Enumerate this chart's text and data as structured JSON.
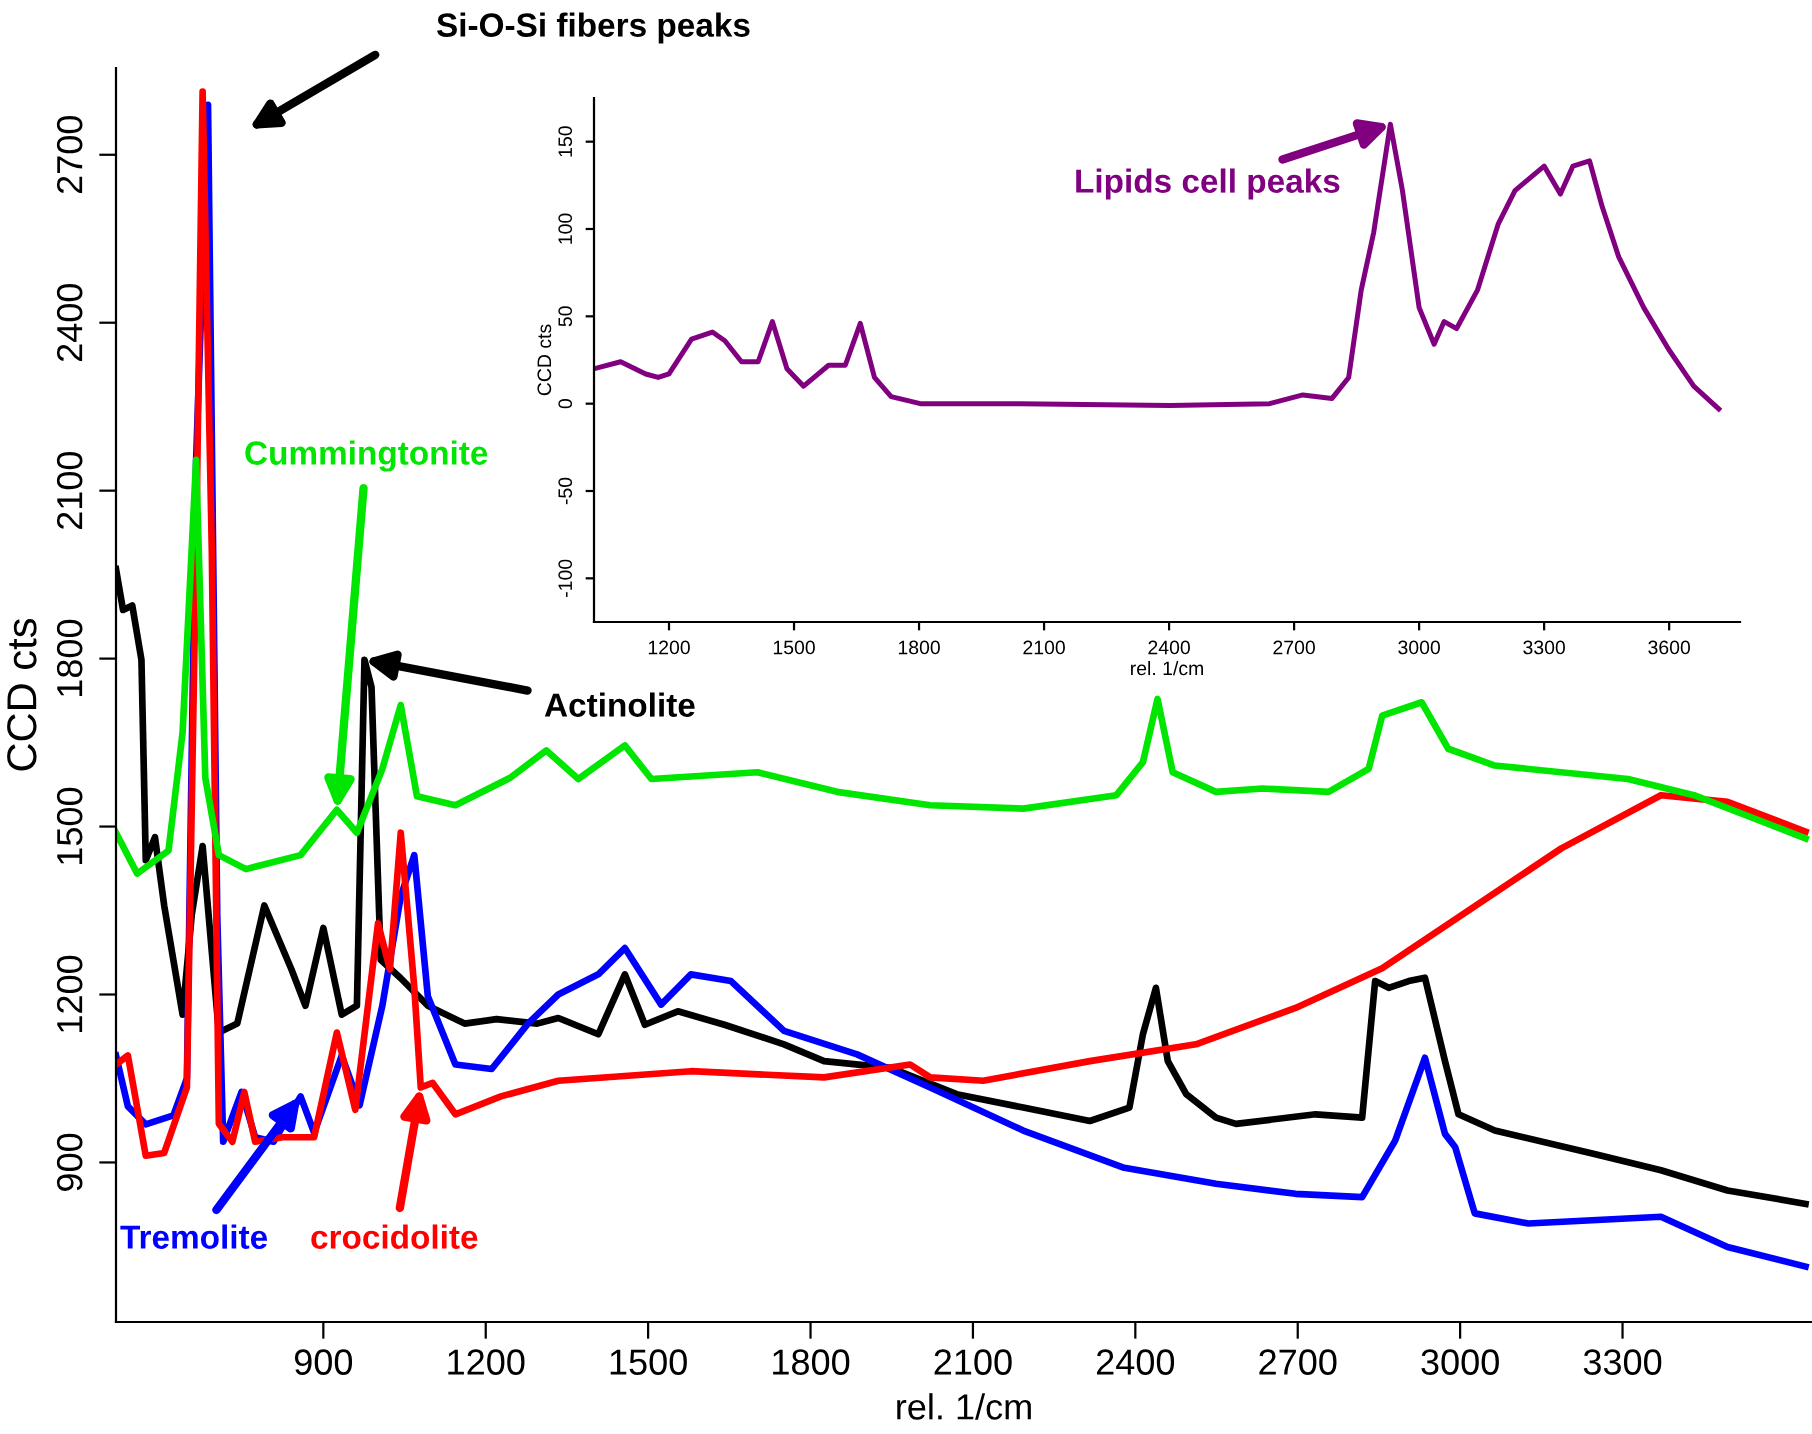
{
  "chart_data": [
    {
      "type": "line",
      "xlabel": "rel. 1/cm",
      "ylabel": "CCD cts",
      "xlim": [
        517,
        3650
      ],
      "ylim": [
        615,
        2855
      ],
      "xticks": [
        900,
        1200,
        1500,
        1800,
        2100,
        2400,
        2700,
        3000,
        3300
      ],
      "yticks": [
        900,
        1200,
        1500,
        1800,
        2100,
        2400,
        2700
      ],
      "marker": "none",
      "line_style": "solid",
      "series": [
        {
          "color": "#000000",
          "x": [
            517,
            530,
            547,
            564,
            572,
            589,
            606,
            640,
            657,
            677,
            707,
            741,
            791,
            841,
            867,
            900,
            934,
            962,
            976,
            989,
            1006,
            1043,
            1093,
            1161,
            1220,
            1295,
            1334,
            1408,
            1457,
            1494,
            1555,
            1641,
            1751,
            1825,
            1948,
            2070,
            2193,
            2316,
            2389,
            2414,
            2438,
            2460,
            2494,
            2549,
            2586,
            2733,
            2819,
            2843,
            2868,
            2905,
            2935,
            2972,
            2997,
            3064,
            3248,
            3371,
            3494,
            3638
          ],
          "values": [
            1960,
            1887,
            1895,
            1798,
            1440,
            1481,
            1359,
            1164,
            1343,
            1465,
            1132,
            1148,
            1359,
            1245,
            1180,
            1319,
            1164,
            1180,
            1798,
            1749,
            1262,
            1229,
            1180,
            1148,
            1156,
            1148,
            1158,
            1129,
            1236,
            1146,
            1170,
            1146,
            1111,
            1081,
            1069,
            1022,
            998,
            974,
            998,
            1129,
            1212,
            1081,
            1022,
            980,
            969,
            986,
            980,
            1224,
            1212,
            1224,
            1230,
            1081,
            986,
            957,
            915,
            886,
            850,
            826
          ]
        },
        {
          "color": "#0000ff",
          "x": [
            517,
            539,
            572,
            623,
            648,
            665,
            687,
            704,
            715,
            749,
            774,
            808,
            858,
            883,
            934,
            967,
            1009,
            1043,
            1068,
            1093,
            1144,
            1211,
            1278,
            1334,
            1408,
            1457,
            1524,
            1579,
            1653,
            1751,
            1886,
            2021,
            2193,
            2377,
            2549,
            2696,
            2819,
            2880,
            2935,
            2972,
            2991,
            3027,
            3126,
            3371,
            3494,
            3638
          ],
          "values": [
            1091,
            1000,
            968,
            984,
            1050,
            2155,
            2789,
            1343,
            937,
            1026,
            945,
            937,
            1018,
            953,
            1091,
            1002,
            1180,
            1375,
            1449,
            1197,
            1075,
            1067,
            1148,
            1200,
            1236,
            1283,
            1182,
            1236,
            1224,
            1135,
            1093,
            1034,
            957,
            891,
            862,
            844,
            838,
            939,
            1087,
            951,
            927,
            809,
            791,
            803,
            749,
            714
          ]
        },
        {
          "color": "#ff0000",
          "x": [
            517,
            539,
            572,
            606,
            648,
            665,
            677,
            694,
            707,
            732,
            754,
            774,
            825,
            883,
            925,
            959,
            1001,
            1023,
            1043,
            1068,
            1080,
            1102,
            1144,
            1228,
            1334,
            1579,
            1825,
            1984,
            2021,
            2119,
            2316,
            2512,
            2696,
            2856,
            3003,
            3187,
            3371,
            3494,
            3638
          ],
          "values": [
            1075,
            1091,
            912,
            917,
            1034,
            1993,
            2813,
            1993,
            969,
            937,
            1026,
            937,
            945,
            945,
            1132,
            994,
            1327,
            1245,
            1489,
            1213,
            1034,
            1042,
            986,
            1018,
            1046,
            1063,
            1052,
            1075,
            1052,
            1046,
            1081,
            1111,
            1176,
            1247,
            1342,
            1461,
            1556,
            1544,
            1491
          ]
        },
        {
          "color": "#00e600",
          "x": [
            517,
            556,
            614,
            640,
            665,
            682,
            707,
            757,
            858,
            925,
            962,
            1009,
            1043,
            1073,
            1144,
            1245,
            1312,
            1371,
            1457,
            1506,
            1702,
            1849,
            2021,
            2193,
            2365,
            2414,
            2441,
            2469,
            2549,
            2635,
            2757,
            2831,
            2856,
            2929,
            2978,
            3064,
            3310,
            3432,
            3638
          ],
          "values": [
            1489,
            1416,
            1457,
            1668,
            2155,
            1587,
            1449,
            1424,
            1449,
            1530,
            1489,
            1603,
            1717,
            1554,
            1538,
            1587,
            1636,
            1585,
            1645,
            1585,
            1597,
            1562,
            1538,
            1532,
            1556,
            1615,
            1728,
            1597,
            1562,
            1568,
            1562,
            1603,
            1698,
            1722,
            1639,
            1609,
            1585,
            1556,
            1479
          ]
        }
      ],
      "annotations": [
        "Si-O-Si fibers peaks",
        {
          "text": "Cummingtonite",
          "x": 925,
          "y": 1530
        },
        {
          "text": "Actinolite",
          "x": 976,
          "y": 1798
        },
        {
          "text": "Tremolite",
          "x": 858,
          "y": 1018
        },
        {
          "text": "crocidolite",
          "x": 1080,
          "y": 1034
        }
      ]
    },
    {
      "type": "line",
      "xlabel": "rel. 1/cm",
      "ylabel": "CCD cts",
      "xlim": [
        1020,
        3770
      ],
      "ylim": [
        -125,
        175
      ],
      "xticks": [
        1200,
        1500,
        1800,
        2100,
        2400,
        2700,
        3000,
        3300,
        3600
      ],
      "yticks": [
        -100,
        -50,
        0,
        50,
        100,
        150
      ],
      "marker": "none",
      "line_style": "solid",
      "series": [
        {
          "color": "#800080",
          "x": [
            1020,
            1084,
            1144,
            1174,
            1200,
            1254,
            1304,
            1334,
            1374,
            1414,
            1448,
            1483,
            1523,
            1583,
            1623,
            1659,
            1693,
            1733,
            1803,
            2042,
            2402,
            2641,
            2721,
            2791,
            2831,
            2861,
            2891,
            2931,
            2960,
            3000,
            3036,
            3060,
            3090,
            3140,
            3190,
            3230,
            3300,
            3339,
            3369,
            3409,
            3439,
            3479,
            3539,
            3599,
            3659,
            3719
          ],
          "values": [
            20,
            24,
            17,
            15,
            17,
            37,
            41,
            36,
            24,
            24,
            47,
            20,
            10,
            22,
            22,
            46,
            15,
            4,
            0,
            0,
            -1,
            0,
            5,
            3,
            15,
            65,
            98,
            160,
            122,
            55,
            34,
            47,
            43,
            65,
            103,
            122,
            136,
            120,
            136,
            139,
            113,
            84,
            55,
            31,
            10,
            -3
          ]
        }
      ],
      "annotations": [
        {
          "text": "Lipids cell peaks",
          "x": 2931,
          "y": 160
        }
      ]
    }
  ]
}
